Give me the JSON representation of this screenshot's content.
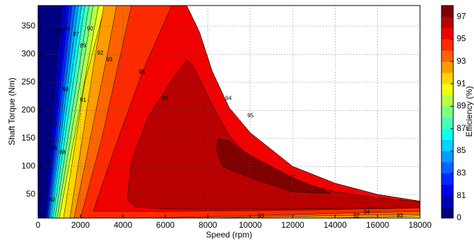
{
  "chart_data": {
    "type": "contour",
    "x_label": "Speed  (rpm)",
    "y_label": "Shaft Torque  (Nm)",
    "colorbar_label": "Efficiency (%)",
    "colormap": "jet",
    "grid": true,
    "xlim": [
      0,
      18000
    ],
    "ylim": [
      8,
      387
    ],
    "xticks": [
      0,
      2000,
      4000,
      6000,
      8000,
      10000,
      12000,
      14000,
      16000,
      18000
    ],
    "yticks": [
      50,
      100,
      150,
      200,
      250,
      300,
      350
    ],
    "levels": [
      0,
      80,
      81,
      82,
      83,
      84,
      85,
      86,
      87,
      88,
      89,
      90,
      91,
      92,
      93,
      94,
      95,
      96,
      97,
      98
    ],
    "colorbar_ticks": [
      0,
      81,
      83,
      85,
      87,
      89,
      91,
      93,
      95,
      97
    ],
    "regions": [
      {
        "level": 0,
        "points": [
          [
            0,
            8
          ],
          [
            0,
            387
          ],
          [
            7000,
            387
          ],
          [
            7600,
            340
          ],
          [
            8200,
            270
          ],
          [
            9000,
            205
          ],
          [
            10000,
            160
          ],
          [
            12000,
            100
          ],
          [
            14000,
            70
          ],
          [
            16000,
            50
          ],
          [
            18000,
            38
          ],
          [
            18000,
            8
          ]
        ]
      },
      {
        "level": 80,
        "points": [
          [
            300,
            8
          ],
          [
            1100,
            387
          ],
          [
            7000,
            387
          ],
          [
            7600,
            340
          ],
          [
            8200,
            270
          ],
          [
            9000,
            205
          ],
          [
            10000,
            160
          ],
          [
            12000,
            100
          ],
          [
            14000,
            70
          ],
          [
            16000,
            50
          ],
          [
            18000,
            38
          ],
          [
            18000,
            8
          ]
        ]
      },
      {
        "level": 81,
        "points": [
          [
            350,
            8
          ],
          [
            1300,
            387
          ],
          [
            7000,
            387
          ],
          [
            7600,
            340
          ],
          [
            8200,
            270
          ],
          [
            9000,
            205
          ],
          [
            10000,
            160
          ],
          [
            12000,
            100
          ],
          [
            14000,
            70
          ],
          [
            16000,
            50
          ],
          [
            18000,
            38
          ],
          [
            18000,
            8
          ]
        ]
      },
      {
        "level": 82,
        "points": [
          [
            400,
            8
          ],
          [
            1450,
            387
          ],
          [
            7000,
            387
          ],
          [
            7600,
            340
          ],
          [
            8200,
            270
          ],
          [
            9000,
            205
          ],
          [
            10000,
            160
          ],
          [
            12000,
            100
          ],
          [
            14000,
            70
          ],
          [
            16000,
            50
          ],
          [
            18000,
            38
          ],
          [
            18000,
            8
          ]
        ]
      },
      {
        "level": 83,
        "points": [
          [
            450,
            8
          ],
          [
            1600,
            387
          ],
          [
            7000,
            387
          ],
          [
            7600,
            340
          ],
          [
            8200,
            270
          ],
          [
            9000,
            205
          ],
          [
            10000,
            160
          ],
          [
            12000,
            100
          ],
          [
            14000,
            70
          ],
          [
            16000,
            50
          ],
          [
            18000,
            38
          ],
          [
            18000,
            8
          ]
        ]
      },
      {
        "level": 84,
        "points": [
          [
            500,
            8
          ],
          [
            1750,
            387
          ],
          [
            7000,
            387
          ],
          [
            7600,
            340
          ],
          [
            8200,
            270
          ],
          [
            9000,
            205
          ],
          [
            10000,
            160
          ],
          [
            12000,
            100
          ],
          [
            14000,
            70
          ],
          [
            16000,
            50
          ],
          [
            18000,
            38
          ],
          [
            18000,
            8
          ]
        ]
      },
      {
        "level": 85,
        "points": [
          [
            550,
            8
          ],
          [
            1900,
            387
          ],
          [
            7000,
            387
          ],
          [
            7600,
            340
          ],
          [
            8200,
            270
          ],
          [
            9000,
            205
          ],
          [
            10000,
            160
          ],
          [
            12000,
            100
          ],
          [
            14000,
            70
          ],
          [
            16000,
            50
          ],
          [
            18000,
            38
          ],
          [
            18000,
            8
          ]
        ]
      },
      {
        "level": 86,
        "points": [
          [
            620,
            8
          ],
          [
            2050,
            387
          ],
          [
            7000,
            387
          ],
          [
            7600,
            340
          ],
          [
            8200,
            270
          ],
          [
            9000,
            205
          ],
          [
            10000,
            160
          ],
          [
            12000,
            100
          ],
          [
            14000,
            70
          ],
          [
            16000,
            50
          ],
          [
            18000,
            38
          ],
          [
            18000,
            8
          ]
        ]
      },
      {
        "level": 87,
        "points": [
          [
            700,
            8
          ],
          [
            2200,
            387
          ],
          [
            7000,
            387
          ],
          [
            7600,
            340
          ],
          [
            8200,
            270
          ],
          [
            9000,
            205
          ],
          [
            10000,
            160
          ],
          [
            12000,
            100
          ],
          [
            14000,
            70
          ],
          [
            16000,
            50
          ],
          [
            18000,
            38
          ],
          [
            18000,
            8
          ]
        ]
      },
      {
        "level": 88,
        "points": [
          [
            800,
            8
          ],
          [
            2400,
            387
          ],
          [
            7000,
            387
          ],
          [
            7600,
            340
          ],
          [
            8200,
            270
          ],
          [
            9000,
            205
          ],
          [
            10000,
            160
          ],
          [
            12000,
            100
          ],
          [
            14000,
            70
          ],
          [
            16000,
            50
          ],
          [
            18000,
            38
          ],
          [
            18000,
            8
          ]
        ]
      },
      {
        "level": 89,
        "points": [
          [
            900,
            8
          ],
          [
            2600,
            387
          ],
          [
            7000,
            387
          ],
          [
            7600,
            340
          ],
          [
            8200,
            270
          ],
          [
            9000,
            205
          ],
          [
            10000,
            160
          ],
          [
            12000,
            100
          ],
          [
            14000,
            70
          ],
          [
            16000,
            50
          ],
          [
            18000,
            38
          ],
          [
            18000,
            8
          ]
        ]
      },
      {
        "level": 90,
        "points": [
          [
            1000,
            8
          ],
          [
            2850,
            387
          ],
          [
            7000,
            387
          ],
          [
            7600,
            340
          ],
          [
            8200,
            270
          ],
          [
            9000,
            205
          ],
          [
            10000,
            160
          ],
          [
            12000,
            100
          ],
          [
            14000,
            70
          ],
          [
            16000,
            50
          ],
          [
            18000,
            38
          ],
          [
            18000,
            8
          ]
        ]
      },
      {
        "level": 91,
        "points": [
          [
            1200,
            8
          ],
          [
            2200,
            250
          ],
          [
            3150,
            387
          ],
          [
            7000,
            387
          ],
          [
            7600,
            340
          ],
          [
            8200,
            270
          ],
          [
            9000,
            205
          ],
          [
            10000,
            160
          ],
          [
            12000,
            100
          ],
          [
            14000,
            70
          ],
          [
            16000,
            50
          ],
          [
            18000,
            38
          ],
          [
            18000,
            8
          ]
        ]
      },
      {
        "level": 92,
        "points": [
          [
            1500,
            8
          ],
          [
            2700,
            300
          ],
          [
            3100,
            387
          ],
          [
            7000,
            387
          ],
          [
            7600,
            340
          ],
          [
            8200,
            270
          ],
          [
            9000,
            205
          ],
          [
            10000,
            160
          ],
          [
            12000,
            100
          ],
          [
            14000,
            70
          ],
          [
            16000,
            50
          ],
          [
            18000,
            38
          ],
          [
            18000,
            12
          ],
          [
            15000,
            9
          ],
          [
            13000,
            8
          ]
        ]
      },
      {
        "level": 93,
        "points": [
          [
            1700,
            8
          ],
          [
            3260,
            300
          ],
          [
            3700,
            387
          ],
          [
            7000,
            387
          ],
          [
            7600,
            340
          ],
          [
            8200,
            270
          ],
          [
            9000,
            205
          ],
          [
            10000,
            160
          ],
          [
            12000,
            100
          ],
          [
            14000,
            70
          ],
          [
            16000,
            50
          ],
          [
            18000,
            38
          ],
          [
            18000,
            15
          ],
          [
            10500,
            10
          ],
          [
            8000,
            8
          ]
        ]
      },
      {
        "level": 94,
        "points": [
          [
            2000,
            8
          ],
          [
            3000,
            150
          ],
          [
            4400,
            387
          ],
          [
            7000,
            387
          ],
          [
            7600,
            340
          ],
          [
            8200,
            270
          ],
          [
            9000,
            205
          ],
          [
            10000,
            160
          ],
          [
            12000,
            100
          ],
          [
            14000,
            70
          ],
          [
            16000,
            50
          ],
          [
            18000,
            38
          ],
          [
            18000,
            20
          ],
          [
            15500,
            18
          ],
          [
            10000,
            12
          ],
          [
            5000,
            8
          ]
        ]
      },
      {
        "level": 95,
        "points": [
          [
            2600,
            20
          ],
          [
            3500,
            120
          ],
          [
            4900,
            267
          ],
          [
            6300,
            387
          ],
          [
            7000,
            387
          ],
          [
            7600,
            340
          ],
          [
            8200,
            270
          ],
          [
            9000,
            205
          ],
          [
            10000,
            160
          ],
          [
            12000,
            100
          ],
          [
            14000,
            70
          ],
          [
            16000,
            50
          ],
          [
            18000,
            38
          ],
          [
            18000,
            26
          ],
          [
            12000,
            22
          ],
          [
            6000,
            20
          ]
        ]
      },
      {
        "level": 96,
        "points": [
          [
            4200,
            40
          ],
          [
            4400,
            110
          ],
          [
            5200,
            190
          ],
          [
            6400,
            260
          ],
          [
            7000,
            290
          ],
          [
            7300,
            280
          ],
          [
            8200,
            210
          ],
          [
            9000,
            155
          ],
          [
            10000,
            115
          ],
          [
            12000,
            75
          ],
          [
            14000,
            55
          ],
          [
            16000,
            44
          ],
          [
            18000,
            37
          ],
          [
            18000,
            27
          ],
          [
            12000,
            24
          ],
          [
            6000,
            24
          ],
          [
            4600,
            28
          ]
        ]
      },
      {
        "level": 97,
        "points": [
          [
            8500,
            150
          ],
          [
            9000,
            145
          ],
          [
            10000,
            120
          ],
          [
            12000,
            80
          ],
          [
            13800,
            52
          ],
          [
            12000,
            55
          ],
          [
            10000,
            80
          ],
          [
            8700,
            100
          ],
          [
            8400,
            130
          ]
        ]
      }
    ],
    "contour_labels": [
      {
        "label": "80",
        "x": 650,
        "y": 40
      },
      {
        "label": "86",
        "x": 750,
        "y": 132
      },
      {
        "label": "88",
        "x": 1150,
        "y": 125
      },
      {
        "label": "88",
        "x": 1300,
        "y": 237
      },
      {
        "label": "91",
        "x": 2120,
        "y": 218
      },
      {
        "label": "83",
        "x": 980,
        "y": 341
      },
      {
        "label": "85",
        "x": 1370,
        "y": 345
      },
      {
        "label": "87",
        "x": 1790,
        "y": 335
      },
      {
        "label": "90",
        "x": 2450,
        "y": 345
      },
      {
        "label": "89",
        "x": 2120,
        "y": 315
      },
      {
        "label": "92",
        "x": 2930,
        "y": 302
      },
      {
        "label": "93",
        "x": 3360,
        "y": 290
      },
      {
        "label": "95",
        "x": 4890,
        "y": 268
      },
      {
        "label": "96",
        "x": 5970,
        "y": 221
      },
      {
        "label": "94",
        "x": 8970,
        "y": 221
      },
      {
        "label": "95",
        "x": 10010,
        "y": 190
      },
      {
        "label": "97",
        "x": 11970,
        "y": 80
      },
      {
        "label": "94",
        "x": 15490,
        "y": 18
      },
      {
        "label": "92",
        "x": 15000,
        "y": 12
      },
      {
        "label": "93",
        "x": 10500,
        "y": 11
      },
      {
        "label": "93",
        "x": 17050,
        "y": 12
      }
    ]
  }
}
